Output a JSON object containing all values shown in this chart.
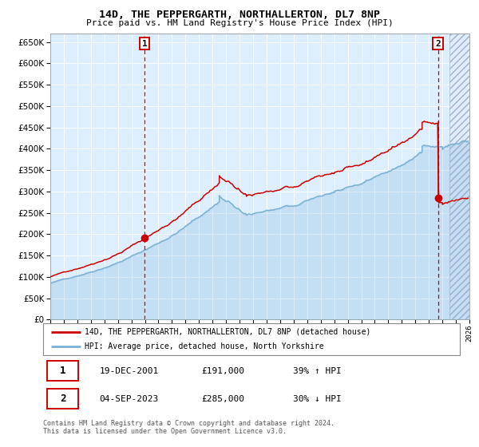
{
  "title": "14D, THE PEPPERGARTH, NORTHALLERTON, DL7 8NP",
  "subtitle": "Price paid vs. HM Land Registry's House Price Index (HPI)",
  "legend_line1": "14D, THE PEPPERGARTH, NORTHALLERTON, DL7 8NP (detached house)",
  "legend_line2": "HPI: Average price, detached house, North Yorkshire",
  "annotation1_date": "19-DEC-2001",
  "annotation1_price": "£191,000",
  "annotation1_hpi": "39% ↑ HPI",
  "annotation1_year": 2001.97,
  "annotation1_value": 191000,
  "annotation2_date": "04-SEP-2023",
  "annotation2_price": "£285,000",
  "annotation2_hpi": "30% ↓ HPI",
  "annotation2_year": 2023.67,
  "annotation2_value": 285000,
  "footer1": "Contains HM Land Registry data © Crown copyright and database right 2024.",
  "footer2": "This data is licensed under the Open Government Licence v3.0.",
  "hpi_color": "#7ab0d4",
  "price_color": "#cc0000",
  "plot_bg": "#ddeeff",
  "grid_color": "#ffffff",
  "fig_bg": "#ffffff",
  "ylim": [
    0,
    670000
  ],
  "yticks": [
    0,
    50000,
    100000,
    150000,
    200000,
    250000,
    300000,
    350000,
    400000,
    450000,
    500000,
    550000,
    600000,
    650000
  ],
  "xmin": 1995,
  "xmax": 2026
}
